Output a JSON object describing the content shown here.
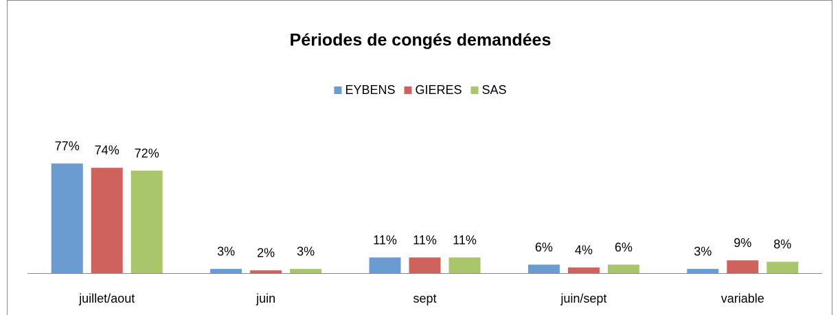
{
  "chart_data": {
    "type": "bar",
    "title": "Périodes de congés demandées",
    "categories": [
      "juillet/aout",
      "juin",
      "sept",
      "juin/sept",
      "variable"
    ],
    "series": [
      {
        "name": "EYBENS",
        "color": "#6a9bd1",
        "values": [
          77,
          3,
          11,
          6,
          3
        ],
        "value_labels": [
          "77%",
          "3%",
          "11%",
          "6%",
          "3%"
        ]
      },
      {
        "name": "GIERES",
        "color": "#d0625d",
        "values": [
          74,
          2,
          11,
          4,
          9
        ],
        "value_labels": [
          "74%",
          "2%",
          "11%",
          "4%",
          "9%"
        ]
      },
      {
        "name": "SAS",
        "color": "#a9c66b",
        "values": [
          72,
          3,
          11,
          6,
          8
        ],
        "value_labels": [
          "72%",
          "3%",
          "11%",
          "6%",
          "8%"
        ]
      }
    ],
    "ylim": [
      0,
      80
    ],
    "legend": "top"
  }
}
